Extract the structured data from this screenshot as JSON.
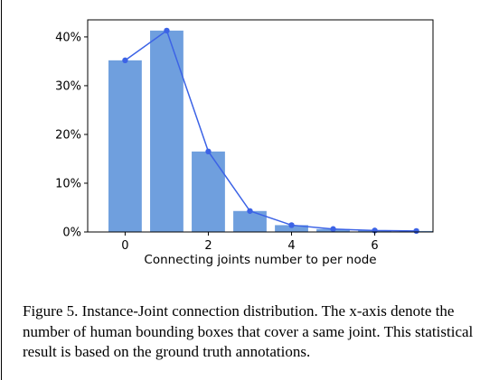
{
  "chart_data": {
    "type": "bar",
    "x": [
      0,
      1,
      2,
      3,
      4,
      5,
      6,
      7
    ],
    "values": [
      35.2,
      41.3,
      16.5,
      4.3,
      1.4,
      0.6,
      0.3,
      0.2
    ],
    "line_overlay": true,
    "xlabel": "Connecting joints number to per node",
    "ylabel": "",
    "xticks": [
      0,
      2,
      4,
      6
    ],
    "xtick_labels": [
      "0",
      "2",
      "4",
      "6"
    ],
    "yticks": [
      0,
      10,
      20,
      30,
      40
    ],
    "ytick_labels": [
      "0%",
      "10%",
      "20%",
      "30%",
      "40%"
    ],
    "xlim": [
      -0.9,
      7.4
    ],
    "ylim": [
      0,
      43.5
    ],
    "grid": false,
    "bar_color": "#6f9fde",
    "line_color": "#3c63e6"
  },
  "caption": "Figure 5. Instance-Joint connection distribution. The x-axis denote the number of human bounding boxes that cover a same joint. This statistical result is based on the ground truth annotations."
}
